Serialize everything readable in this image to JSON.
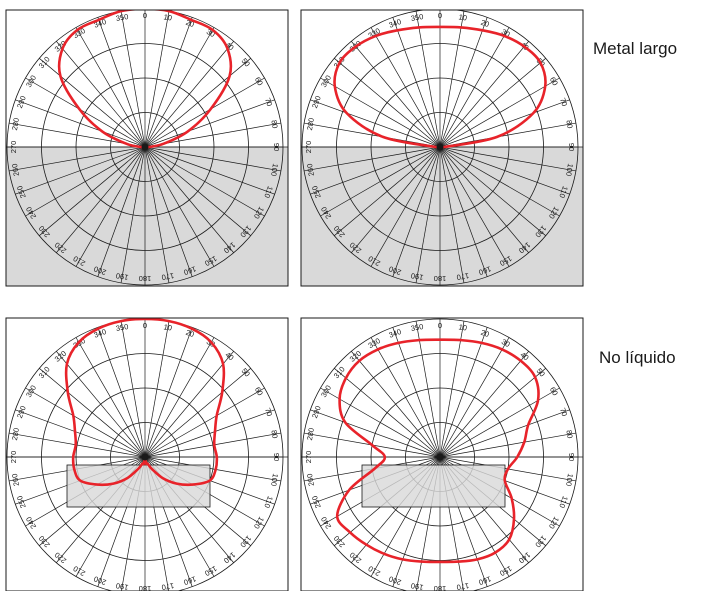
{
  "labels": [
    "Metal largo",
    "No líquido"
  ],
  "angle_labels": [
    "0",
    "10",
    "20",
    "30",
    "40",
    "50",
    "60",
    "70",
    "80",
    "90",
    "100",
    "110",
    "120",
    "130",
    "140",
    "150",
    "160",
    "170",
    "180",
    "190",
    "200",
    "210",
    "220",
    "230",
    "240",
    "250",
    "260",
    "270",
    "280",
    "290",
    "300",
    "310",
    "320",
    "330",
    "340",
    "350"
  ],
  "colors": {
    "pattern_line": "#e8232a",
    "shade_fill": "#d9d9d9",
    "grid_line": "#1a1a1a",
    "frame": "#1a1a1a"
  },
  "chart_data": [
    {
      "type": "polar",
      "shaded_region": "lower-half",
      "theta_deg": [
        0,
        10,
        20,
        30,
        40,
        50,
        60,
        70,
        80,
        90,
        100,
        110,
        120,
        130,
        140,
        150,
        160,
        170,
        180,
        190,
        200,
        210,
        220,
        230,
        240,
        250,
        260,
        270,
        280,
        290,
        300,
        310,
        320,
        330,
        340,
        350
      ],
      "radius": [
        1.0,
        1.0,
        0.98,
        0.98,
        0.93,
        0.8,
        0.55,
        0.33,
        0.14,
        0.03,
        0,
        0,
        0,
        0,
        0,
        0,
        0,
        0,
        0,
        0,
        0,
        0,
        0,
        0,
        0,
        0,
        0,
        0.03,
        0.14,
        0.33,
        0.55,
        0.8,
        0.93,
        0.98,
        0.98,
        1.0
      ]
    },
    {
      "type": "polar",
      "shaded_region": "lower-half",
      "theta_deg": [
        0,
        10,
        20,
        30,
        40,
        50,
        60,
        70,
        80,
        90,
        100,
        110,
        120,
        130,
        140,
        150,
        160,
        170,
        180,
        190,
        200,
        210,
        220,
        230,
        240,
        250,
        260,
        270,
        280,
        290,
        300,
        310,
        320,
        330,
        340,
        350
      ],
      "radius": [
        0.87,
        0.88,
        0.9,
        0.93,
        0.95,
        0.95,
        0.88,
        0.72,
        0.42,
        0.03,
        0,
        0,
        0,
        0,
        0,
        0,
        0,
        0,
        0,
        0,
        0,
        0,
        0,
        0,
        0,
        0,
        0,
        0.03,
        0.42,
        0.72,
        0.88,
        0.95,
        0.95,
        0.93,
        0.9,
        0.88
      ]
    },
    {
      "type": "polar",
      "shaded_region": "center-rectangle",
      "theta_deg": [
        0,
        10,
        20,
        30,
        40,
        50,
        60,
        70,
        80,
        90,
        100,
        110,
        120,
        130,
        140,
        150,
        160,
        170,
        180,
        190,
        200,
        210,
        220,
        230,
        240,
        250,
        260,
        270,
        280,
        290,
        300,
        310,
        320,
        330,
        340,
        350
      ],
      "radius": [
        1.0,
        1.0,
        0.99,
        0.96,
        0.88,
        0.73,
        0.6,
        0.54,
        0.51,
        0.52,
        0.52,
        0.5,
        0.4,
        0.3,
        0.2,
        0.1,
        0.05,
        0.05,
        0,
        0.05,
        0.05,
        0.1,
        0.2,
        0.3,
        0.4,
        0.5,
        0.52,
        0.52,
        0.51,
        0.54,
        0.6,
        0.73,
        0.88,
        0.96,
        0.99,
        1.0
      ]
    },
    {
      "type": "polar",
      "shaded_region": "center-rectangle",
      "theta_deg": [
        0,
        10,
        20,
        30,
        40,
        50,
        60,
        70,
        80,
        90,
        100,
        110,
        120,
        130,
        140,
        150,
        160,
        170,
        180,
        190,
        200,
        210,
        220,
        230,
        240,
        250,
        260,
        270,
        280,
        290,
        300,
        310,
        320,
        330,
        340,
        350
      ],
      "radius": [
        0.85,
        0.86,
        0.88,
        0.9,
        0.91,
        0.9,
        0.82,
        0.68,
        0.62,
        0.56,
        0.5,
        0.5,
        0.6,
        0.7,
        0.78,
        0.8,
        0.79,
        0.77,
        0.76,
        0.77,
        0.79,
        0.81,
        0.83,
        0.85,
        0.86,
        0.7,
        0.48,
        0.4,
        0.5,
        0.73,
        0.84,
        0.89,
        0.91,
        0.9,
        0.88,
        0.86
      ]
    }
  ]
}
